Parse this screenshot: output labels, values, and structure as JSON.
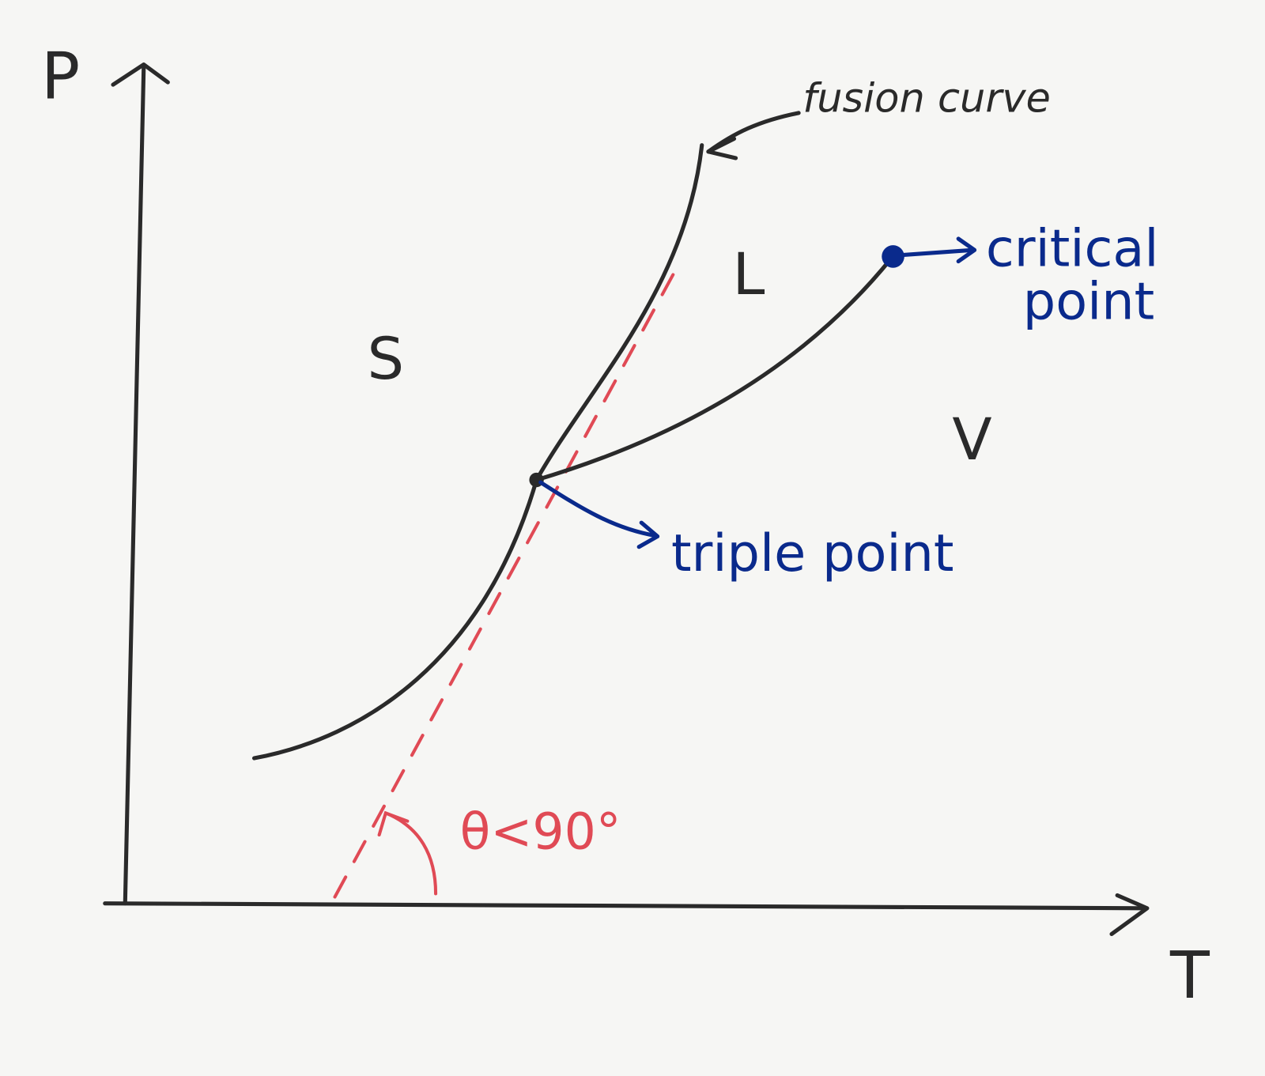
{
  "axes": {
    "y_label": "P",
    "x_label": "T"
  },
  "regions": [
    "S",
    "L",
    "V"
  ],
  "annotations": {
    "fusion_curve": "fusion curve",
    "critical_point": [
      "critical",
      "point"
    ],
    "triple_point": "triple point",
    "angle": "θ<90°"
  }
}
